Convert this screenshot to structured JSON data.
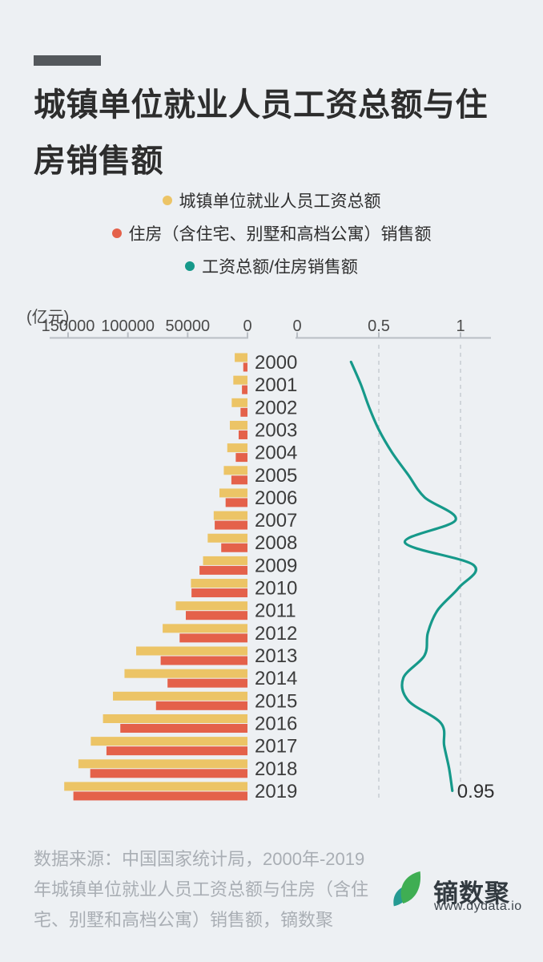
{
  "page": {
    "title": "城镇单位就业人员工资总额与住房销售额",
    "background": "#edf0f3",
    "accent_bar_color": "#54585c"
  },
  "legend": {
    "items": [
      {
        "label": "城镇单位就业人员工资总额",
        "color": "#ecc466"
      },
      {
        "label": "住房（含住宅、别墅和高档公寓）销售额",
        "color": "#e4614a"
      },
      {
        "label": "工资总额/住房销售额",
        "color": "#16998a"
      }
    ]
  },
  "chart_data": {
    "type": "bar+line",
    "unit_label": "(亿元)",
    "years": [
      "2000",
      "2001",
      "2002",
      "2003",
      "2004",
      "2005",
      "2006",
      "2007",
      "2008",
      "2009",
      "2010",
      "2011",
      "2012",
      "2013",
      "2014",
      "2015",
      "2016",
      "2017",
      "2018",
      "2019"
    ],
    "bar_axis": {
      "ticks": [
        "150000",
        "100000",
        "50000",
        "0"
      ],
      "max": 150000,
      "direction": "right-to-left",
      "unit": "亿元"
    },
    "ratio_axis": {
      "ticks": [
        "0",
        "0.5",
        "1"
      ],
      "gridlines": [
        "0.5",
        "1"
      ],
      "max": 1.2
    },
    "series": [
      {
        "name": "城镇单位就业人员工资总额",
        "type": "bar",
        "color": "#ecc466",
        "values": [
          10656,
          11831,
          13161,
          14744,
          16900,
          19790,
          23439,
          28244,
          33254,
          37147,
          47270,
          59955,
          70914,
          93064,
          102817,
          112472,
          120809,
          131001,
          141369,
          153227
        ]
      },
      {
        "name": "住房（含住宅、别墅和高档公寓）销售额",
        "type": "bar",
        "color": "#e4614a",
        "values": [
          3516,
          4614,
          5791,
          7372,
          9802,
          13457,
          18282,
          27397,
          21948,
          40119,
          46797,
          51561,
          56731,
          72590,
          66831,
          76481,
          106312,
          117901,
          131473,
          145566
        ]
      },
      {
        "name": "工资总额/住房销售额",
        "type": "line",
        "color": "#16998a",
        "values": [
          0.33,
          0.39,
          0.44,
          0.5,
          0.58,
          0.68,
          0.78,
          0.97,
          0.66,
          1.08,
          0.99,
          0.86,
          0.8,
          0.78,
          0.65,
          0.68,
          0.88,
          0.9,
          0.93,
          0.95
        ]
      }
    ],
    "annotation": {
      "text": "0.95",
      "year": "2019"
    },
    "legend_position": "top-center",
    "grid": "dashed-vertical"
  },
  "footer": {
    "source_lines": [
      "数据来源：中国国家统计局，2000年-2019",
      "年城镇单位就业人员工资总额与住房（含住",
      "宅、别墅和高档公寓）销售额，镝数聚"
    ],
    "logo": {
      "name": "镝数聚",
      "url": "www.dydata.io",
      "leaf_teal": "#259a92",
      "leaf_green": "#3fae53"
    }
  }
}
